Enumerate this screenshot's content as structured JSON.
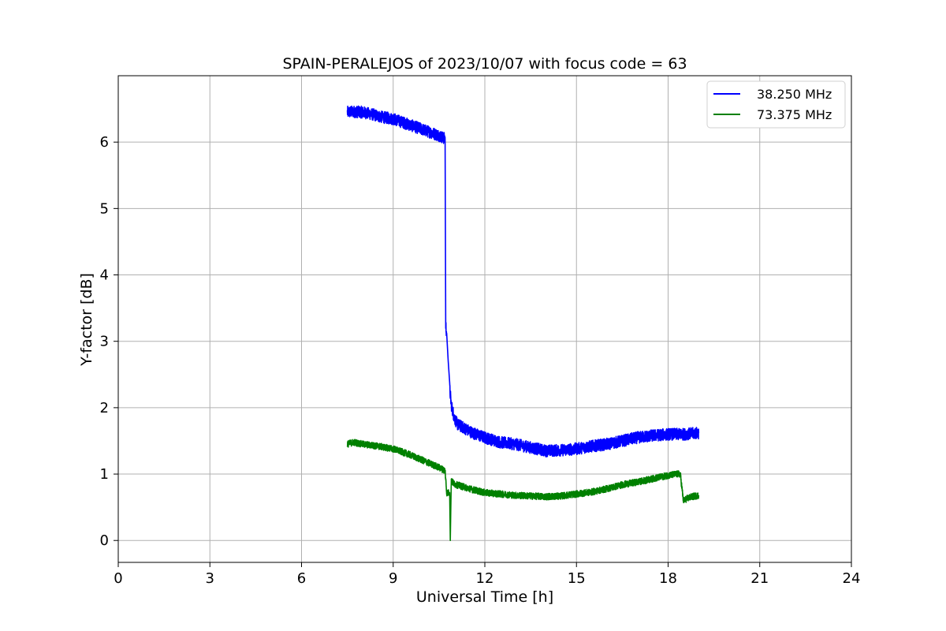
{
  "chart_data": {
    "type": "line",
    "title": "SPAIN-PERALEJOS of 2023/10/07 with focus code = 63",
    "xlabel": "Universal Time [h]",
    "ylabel": "Y-factor [dB]",
    "xlim": [
      0,
      24
    ],
    "ylim": [
      -0.33,
      7.0
    ],
    "xticks": [
      0,
      3,
      6,
      9,
      12,
      15,
      18,
      21,
      24
    ],
    "yticks": [
      0,
      1,
      2,
      3,
      4,
      5,
      6
    ],
    "grid": true,
    "legend_position": "top-right",
    "series": [
      {
        "name": "38.250 MHz",
        "color": "#0000ff",
        "x": [
          7.5,
          7.7,
          8.0,
          8.3,
          8.6,
          9.0,
          9.3,
          9.6,
          9.9,
          10.2,
          10.5,
          10.7,
          10.72,
          10.75,
          10.85,
          10.9,
          11.0,
          11.1,
          11.3,
          11.6,
          12.0,
          12.5,
          13.0,
          13.5,
          14.0,
          14.5,
          15.0,
          15.5,
          16.0,
          16.5,
          17.0,
          17.5,
          18.0,
          18.5,
          19.0
        ],
        "y": [
          6.45,
          6.46,
          6.45,
          6.42,
          6.38,
          6.35,
          6.3,
          6.25,
          6.2,
          6.15,
          6.1,
          6.05,
          3.25,
          3.12,
          2.3,
          2.05,
          1.85,
          1.75,
          1.7,
          1.62,
          1.55,
          1.48,
          1.45,
          1.4,
          1.35,
          1.36,
          1.38,
          1.42,
          1.45,
          1.5,
          1.55,
          1.58,
          1.6,
          1.6,
          1.62
        ],
        "noise": 0.09
      },
      {
        "name": "73.375 MHz",
        "color": "#008000",
        "x": [
          7.5,
          7.7,
          8.0,
          8.5,
          9.0,
          9.5,
          10.0,
          10.5,
          10.7,
          10.75,
          10.8,
          10.85,
          10.87,
          10.9,
          11.0,
          11.5,
          12.0,
          12.5,
          13.0,
          13.5,
          14.0,
          14.5,
          15.0,
          15.5,
          16.0,
          16.5,
          17.0,
          17.5,
          18.0,
          18.3,
          18.4,
          18.5,
          18.7,
          19.0
        ],
        "y": [
          1.45,
          1.48,
          1.45,
          1.42,
          1.38,
          1.3,
          1.2,
          1.1,
          1.05,
          0.72,
          0.72,
          0.72,
          0.0,
          0.9,
          0.85,
          0.78,
          0.72,
          0.7,
          0.68,
          0.67,
          0.66,
          0.67,
          0.7,
          0.73,
          0.78,
          0.84,
          0.88,
          0.93,
          0.98,
          1.0,
          1.0,
          0.6,
          0.65,
          0.68
        ],
        "noise": 0.05
      }
    ]
  }
}
